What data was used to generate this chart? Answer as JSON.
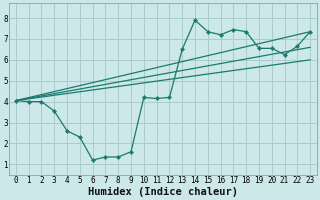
{
  "background_color": "#cce8e8",
  "grid_color": "#aacccc",
  "line_color": "#1a7a6e",
  "xlabel": "Humidex (Indice chaleur)",
  "xlim": [
    -0.5,
    23.5
  ],
  "ylim": [
    0.5,
    8.7
  ],
  "xticks": [
    0,
    1,
    2,
    3,
    4,
    5,
    6,
    7,
    8,
    9,
    10,
    11,
    12,
    13,
    14,
    15,
    16,
    17,
    18,
    19,
    20,
    21,
    22,
    23
  ],
  "yticks": [
    1,
    2,
    3,
    4,
    5,
    6,
    7,
    8
  ],
  "line1_x": [
    0,
    1,
    2,
    3,
    4,
    5,
    6,
    7,
    8,
    9,
    10,
    11,
    12,
    13,
    14,
    15,
    16,
    17,
    18,
    19,
    20,
    21,
    22,
    23
  ],
  "line1_y": [
    4.05,
    4.0,
    4.0,
    3.55,
    2.6,
    2.3,
    1.2,
    1.35,
    1.35,
    1.6,
    4.2,
    4.15,
    4.2,
    6.5,
    7.9,
    7.35,
    7.2,
    7.45,
    7.35,
    6.55,
    6.55,
    6.25,
    6.65,
    7.35
  ],
  "line2_x": [
    0,
    23
  ],
  "line2_y": [
    4.05,
    7.35
  ],
  "line3_x": [
    0,
    23
  ],
  "line3_y": [
    4.05,
    6.6
  ],
  "line4_x": [
    0,
    23
  ],
  "line4_y": [
    4.05,
    6.0
  ],
  "tick_fontsize": 5.5,
  "label_fontsize": 7.5,
  "label_fontweight": "bold"
}
